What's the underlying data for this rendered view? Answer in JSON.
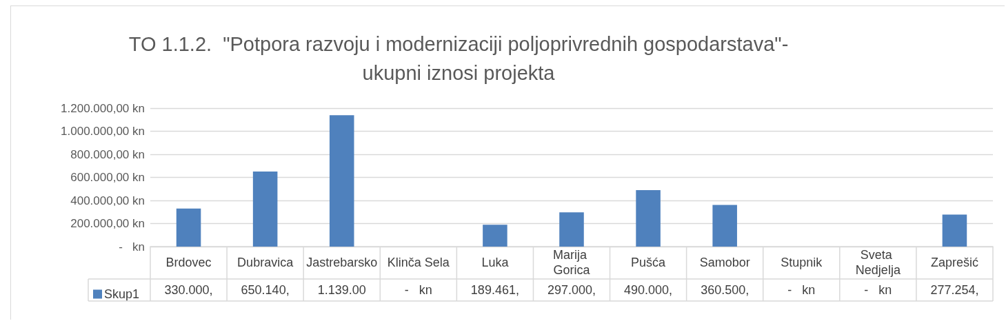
{
  "chart_data": {
    "type": "bar",
    "title": "TO 1.1.2.  \"Potpora razvoju i modernizaciji poljoprivrednih gospodarstava\"-\nukupni iznosi projekta",
    "categories": [
      "Brdovec",
      "Dubravica",
      "Jastrebarsko",
      "Klinča Sela",
      "Luka",
      "Marija Gorica",
      "Pušća",
      "Samobor",
      "Stupnik",
      "Sveta Nedjelja",
      "Zaprešić"
    ],
    "series": [
      {
        "name": "Skup1",
        "color": "#4f81bd",
        "values": [
          330000,
          650140,
          1139000,
          0,
          189461,
          297000,
          490000,
          360500,
          0,
          0,
          277254
        ],
        "value_labels": [
          "330.000,",
          "650.140,",
          "1.139.00",
          "-   kn",
          "189.461,",
          "297.000,",
          "490.000,",
          "360.500,",
          "-   kn",
          "-   kn",
          "277.254,"
        ]
      }
    ],
    "ylim": [
      0,
      1200000
    ],
    "yticks": [
      {
        "value": 0,
        "label": "-   kn"
      },
      {
        "value": 200000,
        "label": "200.000,00 kn"
      },
      {
        "value": 400000,
        "label": "400.000,00 kn"
      },
      {
        "value": 600000,
        "label": "600.000,00 kn"
      },
      {
        "value": 800000,
        "label": "800.000,00 kn"
      },
      {
        "value": 1000000,
        "label": "1.000.000,00 kn"
      },
      {
        "value": 1200000,
        "label": "1.200.000,00 kn"
      }
    ],
    "grid": true,
    "legend": "bottom left"
  }
}
